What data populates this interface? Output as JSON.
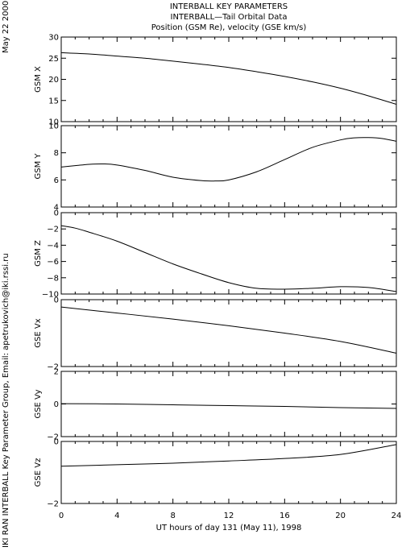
{
  "titles": {
    "line1": "INTERBALL KEY PARAMETERS",
    "line2": "INTERBALL—Tail Orbital Data",
    "line3": "Position (GSM Re), velocity (GSE km/s)"
  },
  "side": {
    "date": "May 22 2000",
    "credit": "IKI RAN INTERBALL Key Parameter Group, Email: apetrukovich@iki.rssi.ru"
  },
  "colors": {
    "line": "#000000",
    "background": "#ffffff"
  },
  "chart_data": {
    "type": "line",
    "xlabel": "UT hours of day 131 (May 11), 1998",
    "xlim": [
      0,
      24
    ],
    "xticks": [
      0,
      4,
      8,
      12,
      16,
      20,
      24
    ],
    "xtick_labels": [
      "0",
      "4",
      "8",
      "12",
      "16",
      "20",
      "24"
    ],
    "panels": [
      {
        "ylabel": "GSM X",
        "ylim": [
          10,
          30
        ],
        "yticks": [
          10,
          15,
          20,
          25,
          30
        ],
        "ytick_labels": [
          "10",
          "15",
          "20",
          "25",
          "30"
        ],
        "x": [
          0,
          2,
          4,
          6,
          8,
          10,
          12,
          14,
          16,
          18,
          20,
          22,
          24
        ],
        "y": [
          26.3,
          26.0,
          25.5,
          25.0,
          24.3,
          23.6,
          22.8,
          21.8,
          20.7,
          19.4,
          17.9,
          16.1,
          14.1
        ]
      },
      {
        "ylabel": "GSM Y",
        "ylim": [
          4,
          10
        ],
        "yticks": [
          4,
          6,
          8,
          10
        ],
        "ytick_labels": [
          "4",
          "6",
          "8",
          "10"
        ],
        "x": [
          0,
          1,
          2,
          3,
          4,
          6,
          8,
          10,
          11,
          12,
          14,
          16,
          18,
          20,
          21,
          22,
          23,
          24
        ],
        "y": [
          6.95,
          7.05,
          7.15,
          7.18,
          7.1,
          6.7,
          6.2,
          5.95,
          5.92,
          6.0,
          6.6,
          7.5,
          8.4,
          8.95,
          9.1,
          9.12,
          9.05,
          8.85
        ]
      },
      {
        "ylabel": "GSM Z",
        "ylim": [
          -10,
          0
        ],
        "yticks": [
          -10,
          -8,
          -6,
          -4,
          -2,
          0
        ],
        "ytick_labels": [
          "−10",
          "−8",
          "−6",
          "−4",
          "−2",
          "0"
        ],
        "x": [
          0,
          1,
          2,
          4,
          6,
          8,
          10,
          12,
          14,
          16,
          18,
          20,
          22,
          24
        ],
        "y": [
          -1.6,
          -1.9,
          -2.4,
          -3.5,
          -4.9,
          -6.3,
          -7.5,
          -8.6,
          -9.3,
          -9.4,
          -9.3,
          -9.1,
          -9.2,
          -9.7
        ]
      },
      {
        "ylabel": "GSE Vx",
        "ylim": [
          -2,
          0
        ],
        "yticks": [
          -2,
          0
        ],
        "ytick_labels": [
          "−2",
          "0"
        ],
        "x": [
          0,
          4,
          8,
          12,
          16,
          20,
          24
        ],
        "y": [
          -0.22,
          -0.4,
          -0.58,
          -0.78,
          -1.0,
          -1.25,
          -1.6
        ]
      },
      {
        "ylabel": "GSE Vy",
        "ylim": [
          -2,
          2
        ],
        "yticks": [
          -2,
          0,
          2
        ],
        "ytick_labels": [
          "−2",
          "0",
          "2"
        ],
        "x": [
          0,
          4,
          8,
          12,
          16,
          20,
          24
        ],
        "y": [
          0.02,
          0.0,
          -0.05,
          -0.1,
          -0.15,
          -0.22,
          -0.27
        ]
      },
      {
        "ylabel": "GSE Vz",
        "ylim": [
          -2,
          0
        ],
        "yticks": [
          -2,
          0
        ],
        "ytick_labels": [
          "−2",
          "0"
        ],
        "x": [
          0,
          4,
          8,
          12,
          16,
          20,
          24
        ],
        "y": [
          -0.8,
          -0.75,
          -0.7,
          -0.63,
          -0.55,
          -0.42,
          -0.1
        ]
      }
    ]
  }
}
